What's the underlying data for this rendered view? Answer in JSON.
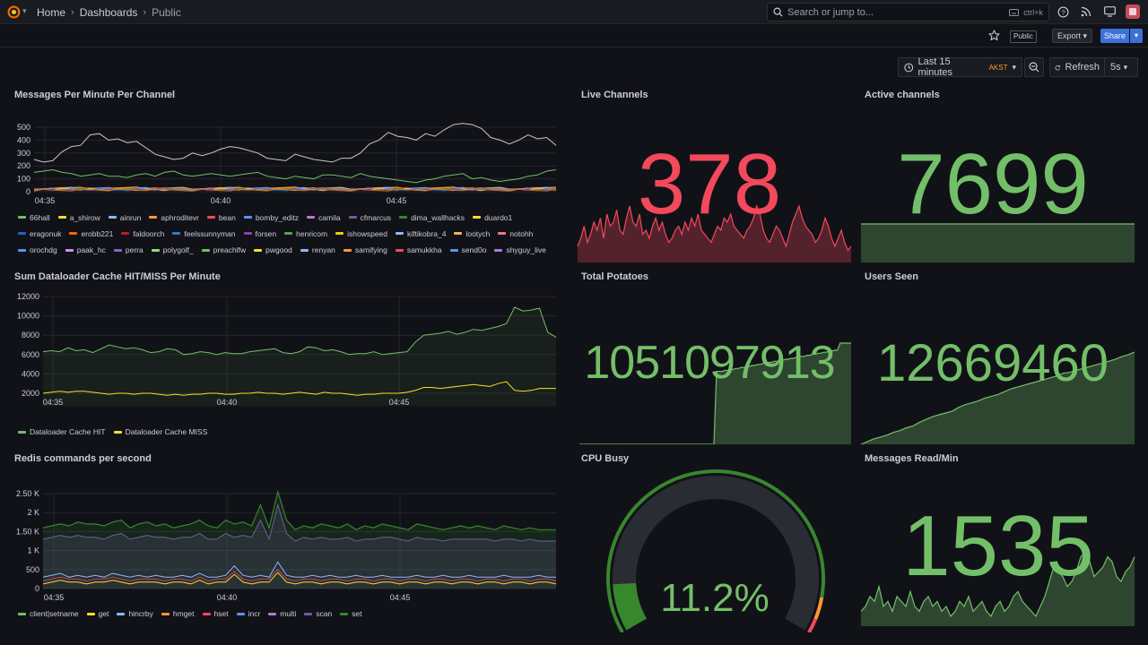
{
  "breadcrumb": {
    "home": "Home",
    "dashboards": "Dashboards",
    "current": "Public"
  },
  "search": {
    "placeholder": "Search or jump to...",
    "shortcut": "ctrl+k"
  },
  "toolbar": {
    "public_tag": "Public",
    "export_label": "Export",
    "share_label": "Share"
  },
  "time": {
    "range_label": "Last 15 minutes",
    "timezone": "AKST",
    "refresh_label": "Refresh",
    "refresh_interval": "5s"
  },
  "colors": {
    "background": "#111217",
    "panel_text": "#ccccdc",
    "red": "#f2495c",
    "green": "#73bf69",
    "blue": "#3d71d9",
    "orange": "#ff9830"
  },
  "time_ticks": [
    "04:35",
    "04:40",
    "04:45"
  ],
  "panels": {
    "messages": {
      "title": "Messages Per Minute Per Channel",
      "y_ticks": [
        "500",
        "400",
        "300",
        "200",
        "100",
        "0"
      ],
      "legend": [
        {
          "name": "66hall",
          "color": "#73bf69"
        },
        {
          "name": "a_shirow",
          "color": "#fade2a"
        },
        {
          "name": "ainrun",
          "color": "#8ab8ff"
        },
        {
          "name": "aphroditevr",
          "color": "#ff9830"
        },
        {
          "name": "bean",
          "color": "#f2495c"
        },
        {
          "name": "bomby_editz",
          "color": "#5794f2"
        },
        {
          "name": "camila",
          "color": "#b877d9"
        },
        {
          "name": "cfmarcus",
          "color": "#705da0"
        },
        {
          "name": "dima_wallhacks",
          "color": "#37872d"
        },
        {
          "name": "duardo1",
          "color": "#fade2a"
        },
        {
          "name": "eragonuk",
          "color": "#1f60c4"
        },
        {
          "name": "erobb221",
          "color": "#fa6400"
        },
        {
          "name": "faldoorch",
          "color": "#c4162a"
        },
        {
          "name": "feelssunnyman",
          "color": "#3274d9"
        },
        {
          "name": "forsen",
          "color": "#8f3bb8"
        },
        {
          "name": "henricom",
          "color": "#56a64b"
        },
        {
          "name": "ishowspeed",
          "color": "#f2cc0c"
        },
        {
          "name": "kiftikobra_4",
          "color": "#8ab8ff"
        },
        {
          "name": "lootych",
          "color": "#ffb357"
        },
        {
          "name": "notohh",
          "color": "#ff7383"
        },
        {
          "name": "orochdg",
          "color": "#5794f2"
        },
        {
          "name": "paak_hc",
          "color": "#ca95e5"
        },
        {
          "name": "perra",
          "color": "#806eb7"
        },
        {
          "name": "polygolf_",
          "color": "#96d98d"
        },
        {
          "name": "preachlfw",
          "color": "#73bf69"
        },
        {
          "name": "pwgood",
          "color": "#fade2a"
        },
        {
          "name": "renyan",
          "color": "#8ab8ff"
        },
        {
          "name": "samifying",
          "color": "#ff9830"
        },
        {
          "name": "samukkha",
          "color": "#f2495c"
        },
        {
          "name": "send0o",
          "color": "#5794f2"
        },
        {
          "name": "shyguy_live",
          "color": "#b877d9"
        }
      ],
      "series_total": [
        250,
        230,
        240,
        310,
        350,
        360,
        440,
        450,
        400,
        410,
        380,
        390,
        340,
        290,
        270,
        250,
        260,
        300,
        280,
        300,
        330,
        350,
        340,
        320,
        300,
        260,
        250,
        240,
        290,
        270,
        250,
        240,
        230,
        260,
        260,
        300,
        370,
        400,
        460,
        430,
        420,
        400,
        450,
        430,
        480,
        520,
        530,
        520,
        490,
        420,
        400,
        370,
        400,
        440,
        410,
        420,
        360
      ],
      "series_second": [
        150,
        160,
        170,
        150,
        140,
        120,
        130,
        140,
        120,
        120,
        110,
        130,
        140,
        120,
        150,
        160,
        130,
        120,
        130,
        140,
        130,
        120,
        130,
        140,
        150,
        120,
        110,
        100,
        120,
        110,
        100,
        130,
        130,
        120,
        110,
        140,
        120,
        110,
        100,
        90,
        80,
        70,
        90,
        100,
        120,
        130,
        140,
        100,
        110,
        90,
        80,
        90,
        100,
        120,
        130,
        160,
        170
      ]
    },
    "cache": {
      "title": "Sum Dataloader Cache HIT/MISS Per Minute",
      "y_ticks": [
        "12000",
        "10000",
        "8000",
        "6000",
        "4000",
        "2000"
      ],
      "legend": [
        {
          "name": "Dataloader Cache HIT",
          "color": "#73bf69"
        },
        {
          "name": "Dataloader Cache MISS",
          "color": "#fade2a"
        }
      ],
      "hit": [
        6300,
        6400,
        6300,
        6700,
        6400,
        6500,
        6200,
        6600,
        7000,
        6800,
        6600,
        6700,
        6500,
        6200,
        6300,
        6600,
        6500,
        6000,
        6100,
        6300,
        6200,
        6000,
        6200,
        6100,
        6100,
        6300,
        6400,
        6500,
        6600,
        6200,
        6100,
        6300,
        6800,
        6700,
        6400,
        6500,
        6300,
        6000,
        6100,
        6100,
        6300,
        6000,
        6100,
        6200,
        6300,
        7300,
        8000,
        8100,
        8200,
        8400,
        8100,
        8300,
        8600,
        8500,
        8700,
        8900,
        9200,
        10900,
        10500,
        10600,
        10800,
        8300,
        7800
      ],
      "miss": [
        2000,
        2100,
        2200,
        2100,
        2200,
        2200,
        2100,
        2000,
        1900,
        2000,
        2000,
        1900,
        2000,
        2000,
        1900,
        1800,
        1900,
        1800,
        1900,
        1900,
        2000,
        2000,
        1900,
        1900,
        2000,
        2000,
        2100,
        2000,
        2000,
        1900,
        2000,
        2100,
        2000,
        1900,
        2100,
        2000,
        2000,
        1900,
        1800,
        1900,
        1900,
        2000,
        2000,
        2000,
        2100,
        2300,
        2600,
        2600,
        2500,
        2600,
        2700,
        2800,
        2900,
        2800,
        2700,
        3000,
        3200,
        2300,
        2200,
        2300,
        2500,
        2500,
        2500
      ]
    },
    "redis": {
      "title": "Redis commands per second",
      "y_ticks": [
        "2.50 K",
        "2 K",
        "1.50 K",
        "1 K",
        "500",
        "0"
      ],
      "legend": [
        {
          "name": "client|setname",
          "color": "#73bf69"
        },
        {
          "name": "get",
          "color": "#fade2a"
        },
        {
          "name": "hincrby",
          "color": "#8ab8ff"
        },
        {
          "name": "hmget",
          "color": "#ff9830"
        },
        {
          "name": "hset",
          "color": "#f2495c"
        },
        {
          "name": "incr",
          "color": "#5794f2"
        },
        {
          "name": "multi",
          "color": "#b877d9"
        },
        {
          "name": "scan",
          "color": "#705da0"
        },
        {
          "name": "set",
          "color": "#37872d"
        }
      ],
      "top": [
        1600,
        1650,
        1700,
        1650,
        1750,
        1700,
        1700,
        1650,
        1750,
        1800,
        1600,
        1700,
        1750,
        1650,
        1700,
        1600,
        1650,
        1700,
        1800,
        1650,
        1600,
        1800,
        1700,
        1750,
        1650,
        2200,
        1600,
        2550,
        1800,
        1550,
        1650,
        1600,
        1700,
        1650,
        1600,
        1700,
        1550,
        1650,
        1600,
        1700,
        1650,
        1600,
        1550,
        1700,
        1650,
        1600,
        1550,
        1600,
        1650,
        1600,
        1650,
        1600,
        1550,
        1650,
        1600,
        1550,
        1600,
        1550,
        1550,
        1550
      ],
      "mid": [
        1300,
        1350,
        1400,
        1350,
        1400,
        1350,
        1350,
        1300,
        1400,
        1450,
        1300,
        1350,
        1400,
        1350,
        1350,
        1300,
        1350,
        1350,
        1450,
        1300,
        1300,
        1450,
        1350,
        1400,
        1350,
        1800,
        1300,
        2200,
        1450,
        1250,
        1350,
        1300,
        1350,
        1300,
        1300,
        1350,
        1250,
        1300,
        1300,
        1350,
        1350,
        1300,
        1250,
        1350,
        1300,
        1300,
        1250,
        1300,
        1300,
        1300,
        1300,
        1300,
        1250,
        1300,
        1300,
        1250,
        1300,
        1250,
        1250,
        1250
      ],
      "low": [
        300,
        350,
        400,
        300,
        350,
        300,
        350,
        300,
        400,
        350,
        300,
        350,
        300,
        350,
        300,
        300,
        350,
        300,
        400,
        300,
        300,
        350,
        600,
        350,
        300,
        350,
        300,
        700,
        350,
        300,
        300,
        350,
        300,
        350,
        300,
        300,
        350,
        300,
        300,
        350,
        300,
        300,
        300,
        350,
        300,
        300,
        350,
        300,
        300,
        350,
        300,
        300,
        300,
        350,
        300,
        300,
        300,
        350,
        300,
        300
      ],
      "low2": [
        200,
        250,
        300,
        250,
        250,
        200,
        250,
        250,
        300,
        250,
        200,
        250,
        250,
        250,
        200,
        250,
        250,
        200,
        300,
        200,
        250,
        250,
        450,
        250,
        200,
        250,
        250,
        500,
        250,
        200,
        250,
        250,
        200,
        250,
        250,
        200,
        250,
        250,
        200,
        250,
        250,
        200,
        250,
        250,
        200,
        250,
        250,
        200,
        250,
        250,
        200,
        250,
        250,
        200,
        250,
        250,
        200,
        250,
        250,
        200
      ]
    },
    "live": {
      "title": "Live Channels",
      "value": "378",
      "color": "#f2495c",
      "spark": [
        20,
        30,
        45,
        25,
        35,
        50,
        40,
        55,
        30,
        60,
        45,
        50,
        65,
        40,
        35,
        55,
        70,
        50,
        45,
        60,
        35,
        40,
        30,
        45,
        55,
        40,
        50,
        35,
        25,
        30,
        40,
        45,
        35,
        50,
        40,
        55,
        45,
        60,
        40,
        35,
        30,
        25,
        35,
        45,
        40,
        55,
        50,
        60,
        45,
        40,
        35,
        30,
        40,
        45,
        55,
        70,
        60,
        40,
        30,
        25,
        35,
        45,
        40,
        30,
        20,
        35,
        50,
        60,
        70,
        55,
        45,
        40,
        35,
        25,
        30,
        40,
        55,
        45,
        30,
        20,
        30,
        40,
        25,
        15,
        20
      ]
    },
    "active": {
      "title": "Active channels",
      "value": "7699",
      "color": "#73bf69",
      "spark": [
        30,
        30,
        30,
        30,
        30,
        30,
        30,
        30,
        30,
        30
      ]
    },
    "potatoes": {
      "title": "Total Potatoes",
      "value": "1051097913",
      "color": "#73bf69",
      "spark": [
        0,
        0,
        0,
        0,
        0,
        0,
        0,
        0,
        0,
        0,
        0,
        0,
        0,
        0,
        0,
        0,
        0,
        0,
        0,
        0,
        0,
        0,
        0,
        0,
        0,
        0,
        0,
        0,
        0,
        0,
        0,
        0,
        0,
        0,
        0,
        0,
        0,
        0,
        0,
        0,
        0,
        0,
        0,
        0,
        0,
        0,
        0,
        0,
        0,
        0,
        72,
        72,
        72,
        73,
        73,
        74,
        74,
        75,
        75,
        76,
        76,
        77,
        77,
        78,
        78,
        79,
        79,
        80,
        80,
        81,
        81,
        82,
        82,
        83,
        83,
        84,
        84,
        85,
        85,
        86,
        86,
        87,
        87,
        88,
        88,
        89,
        89,
        90,
        90,
        91,
        91,
        92,
        92,
        93,
        93,
        100,
        100,
        100,
        100,
        100
      ]
    },
    "users": {
      "title": "Users Seen",
      "value": "12669460",
      "color": "#73bf69",
      "spark": [
        0,
        3,
        6,
        8,
        10,
        13,
        15,
        18,
        20,
        24,
        27,
        30,
        32,
        34,
        36,
        40,
        43,
        45,
        47,
        50,
        52,
        54,
        57,
        60,
        62,
        64,
        66,
        68,
        70,
        72,
        74,
        77,
        78,
        80,
        82,
        84,
        86,
        88,
        90,
        92,
        95,
        97,
        100
      ]
    },
    "cpu": {
      "title": "CPU Busy",
      "value_text": "11.2%",
      "value": 11.2,
      "color": "#73bf69"
    },
    "msgread": {
      "title": "Messages Read/Min",
      "value": "1535",
      "color": "#73bf69",
      "spark": [
        15,
        20,
        30,
        25,
        40,
        20,
        25,
        15,
        30,
        25,
        20,
        35,
        20,
        15,
        25,
        30,
        20,
        25,
        15,
        20,
        10,
        15,
        25,
        20,
        30,
        15,
        20,
        25,
        15,
        10,
        20,
        25,
        15,
        20,
        30,
        35,
        25,
        20,
        15,
        10,
        20,
        30,
        45,
        60,
        55,
        50,
        40,
        45,
        55,
        70,
        75,
        65,
        50,
        55,
        60,
        70,
        65,
        50,
        45,
        55,
        60,
        70
      ]
    }
  }
}
